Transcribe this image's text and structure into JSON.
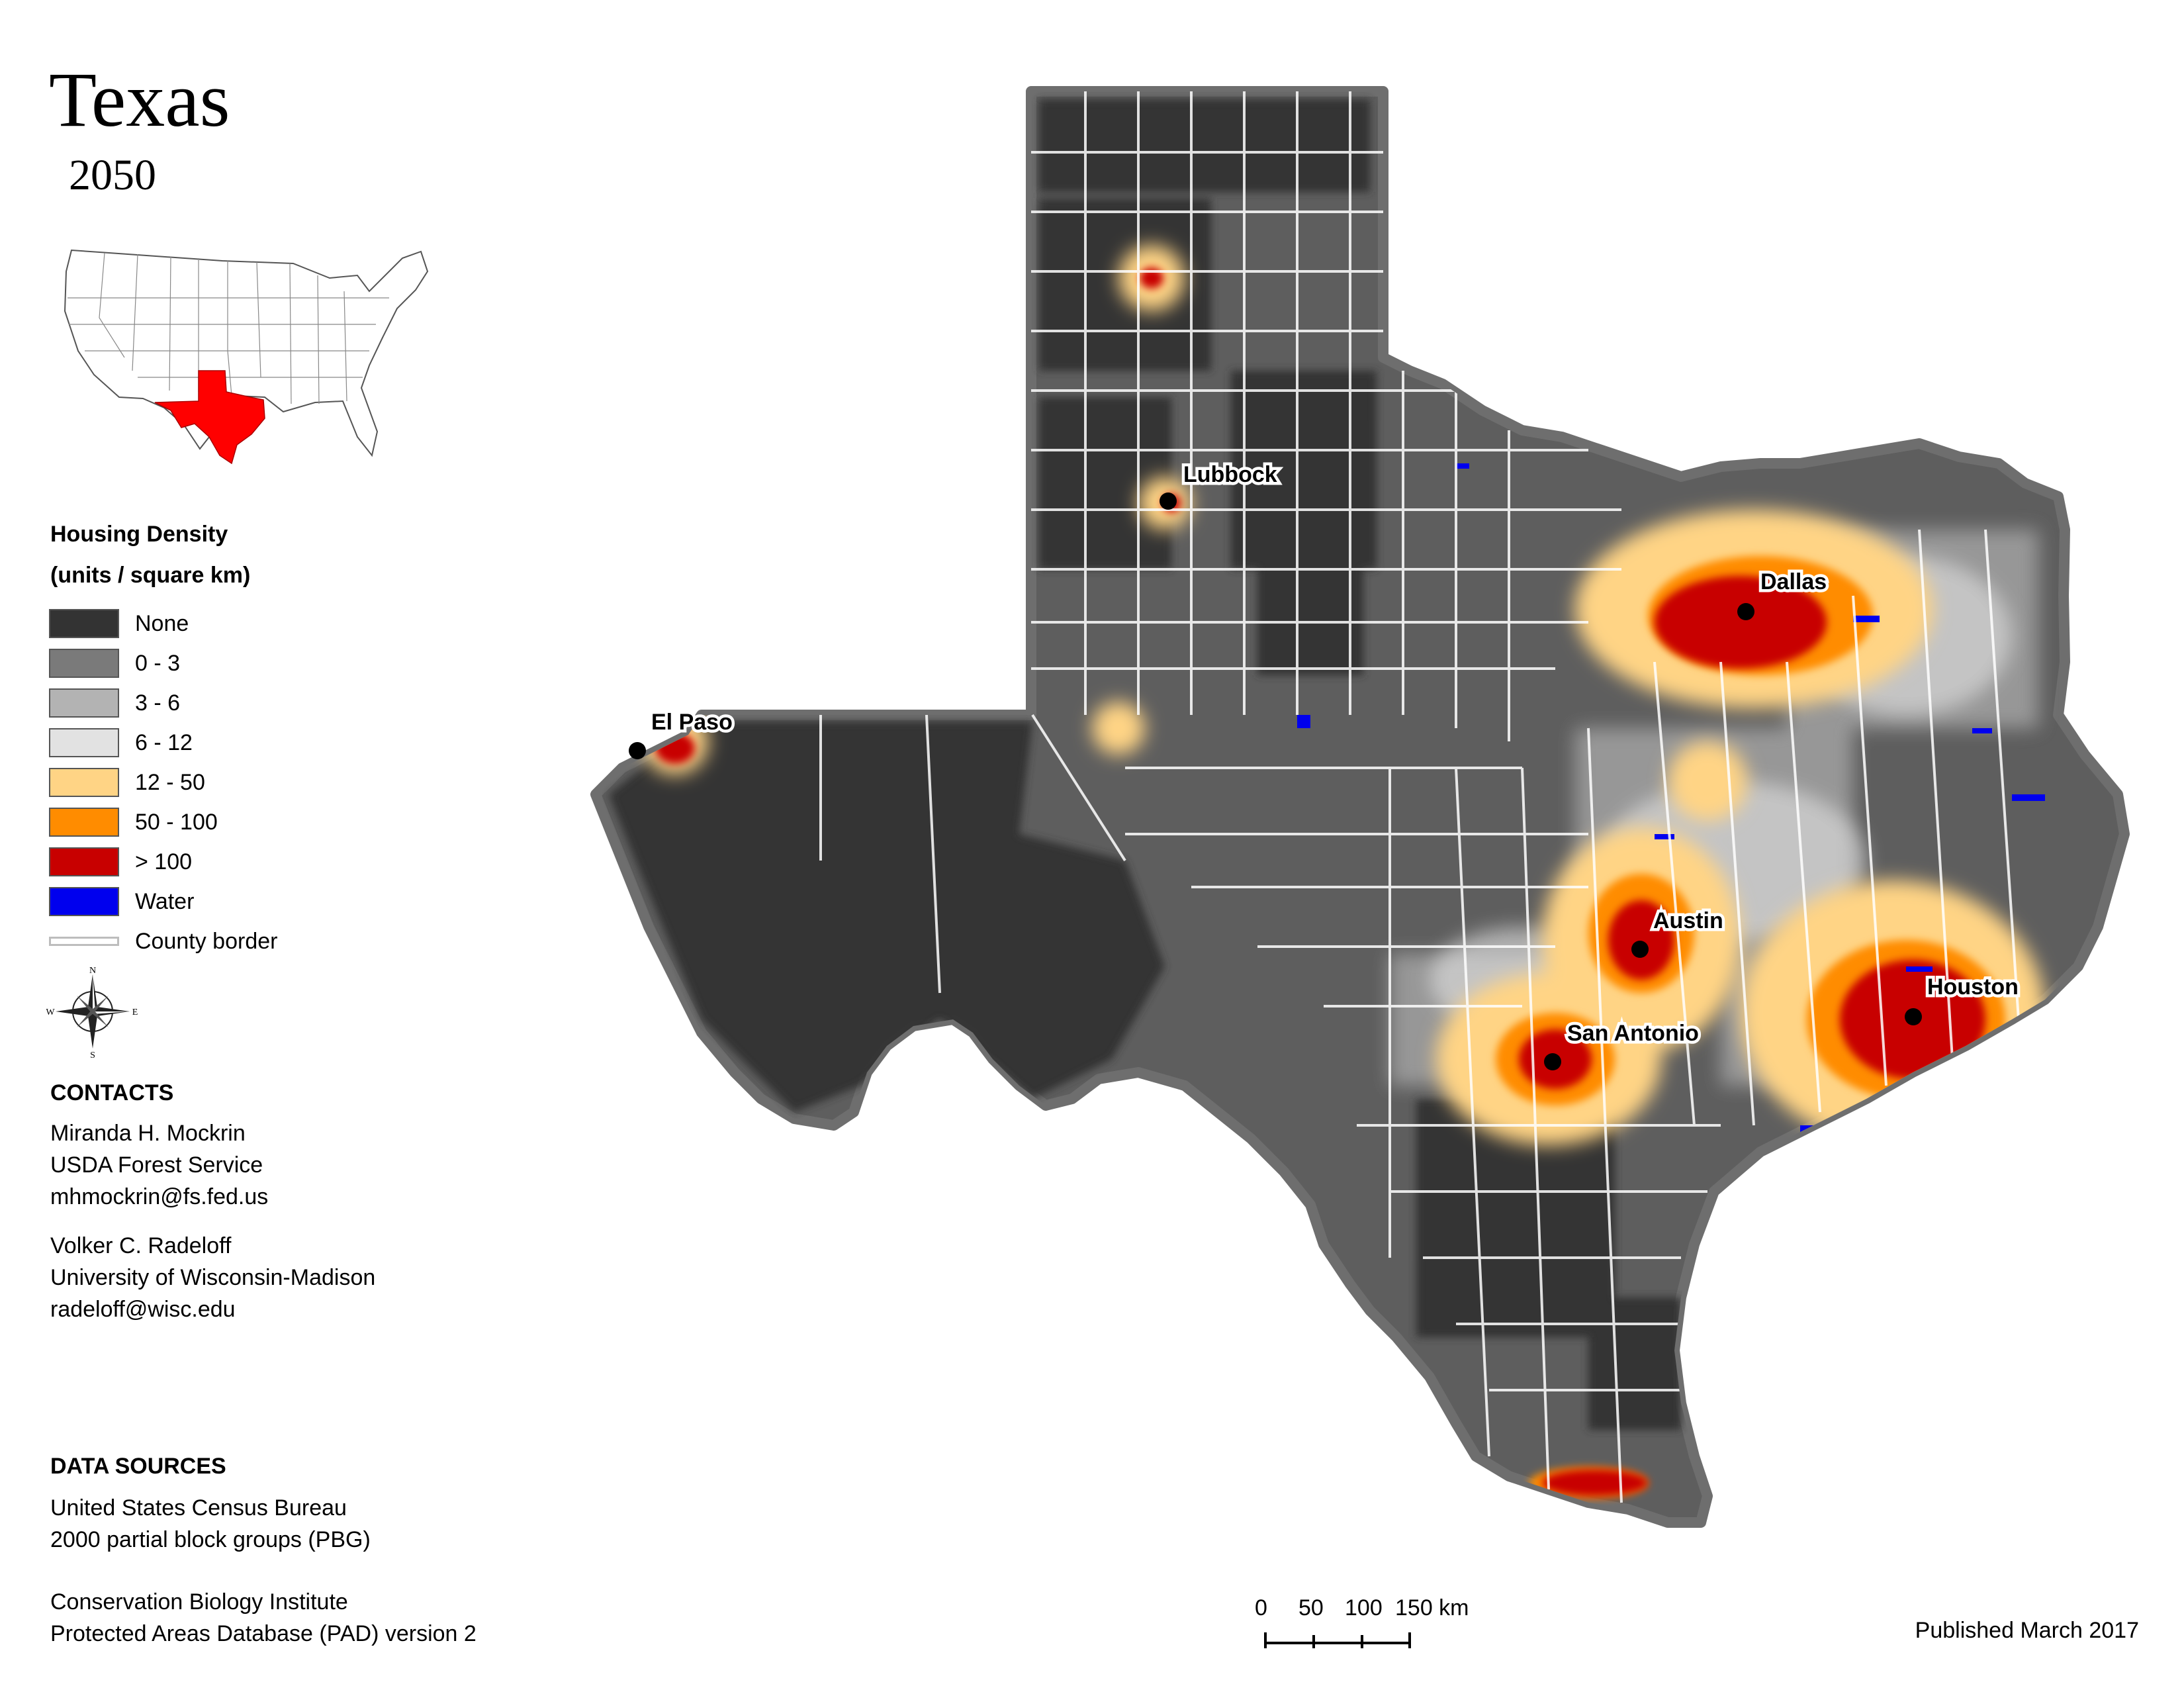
{
  "header": {
    "title": "Texas",
    "year": "2050"
  },
  "legend": {
    "title_line1": "Housing Density",
    "title_line2": "(units / square km)",
    "items": [
      {
        "label": "None",
        "color": "#333333"
      },
      {
        "label": "0 - 3",
        "color": "#7a7a7a"
      },
      {
        "label": "3 - 6",
        "color": "#b3b3b3"
      },
      {
        "label": "6 - 12",
        "color": "#e2e2e2"
      },
      {
        "label": "12 - 50",
        "color": "#ffd485"
      },
      {
        "label": "50 - 100",
        "color": "#ff8c00"
      },
      {
        "label": "> 100",
        "color": "#c80000"
      },
      {
        "label": "Water",
        "color": "#0000ee"
      }
    ],
    "border_label": "County border",
    "border_color": "#bdbdbd"
  },
  "compass": {
    "n": "N",
    "s": "S",
    "e": "E",
    "w": "W"
  },
  "contacts": {
    "heading": "CONTACTS",
    "person1": [
      "Miranda H. Mockrin",
      "USDA Forest Service",
      "mhmockrin@fs.fed.us"
    ],
    "person2": [
      "Volker C. Radeloff",
      "University of Wisconsin-Madison",
      "radeloff@wisc.edu"
    ]
  },
  "data_sources": {
    "heading": "DATA SOURCES",
    "source1": [
      "United States Census Bureau",
      "2000 partial block groups (PBG)"
    ],
    "source2": [
      "Conservation Biology Institute",
      "Protected Areas Database (PAD) version 2"
    ]
  },
  "cities": [
    "Lubbock",
    "Dallas",
    "El Paso",
    "Austin",
    "Houston",
    "San Antonio"
  ],
  "scale": {
    "ticks": [
      "0",
      "50",
      "100",
      "150 km"
    ]
  },
  "published": "Published March 2017",
  "colors": {
    "state_fill": "#5e5e5e",
    "state_outline": "#6e6e6e",
    "locator_highlight": "#ff0000"
  }
}
